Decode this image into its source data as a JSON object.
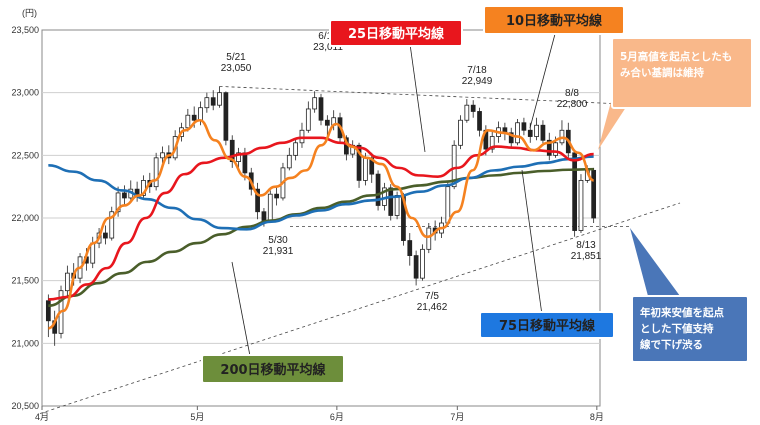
{
  "chart_data": {
    "type": "candlestick",
    "unit_label": "(円)",
    "ylim": [
      20500,
      23500
    ],
    "y_ticks": [
      "23,500",
      "23,000",
      "22,500",
      "22,000",
      "21,500",
      "21,000",
      "20,500"
    ],
    "x_months": [
      "4月",
      "5月",
      "6月",
      "7月",
      "8月"
    ],
    "grid": true,
    "annotations": [
      {
        "date": "5/21",
        "value": "23,050"
      },
      {
        "date": "6/12",
        "value": "23,011"
      },
      {
        "date": "7/18",
        "value": "22,949"
      },
      {
        "date": "8/8",
        "value": "22,800"
      },
      {
        "date": "5/30",
        "value": "21,931"
      },
      {
        "date": "7/5",
        "value": "21,462"
      },
      {
        "date": "8/13",
        "value": "21,851"
      }
    ],
    "series_labels": {
      "ma25": "25日移動平均線",
      "ma10": "10日移動平均線",
      "ma75": "75日移動平均線",
      "ma200": "200日移動平均線"
    },
    "notes": {
      "resistance": "5月高値を起点としたもみ合い基調は維持",
      "support": "年初来安値を起点とした下値支持線で下げ渋る"
    },
    "colors": {
      "ma25": "#e8161d",
      "ma10": "#f58220",
      "ma75": "#1e6fb5",
      "ma200": "#4a5e2a",
      "ma25_box": "#e8161d",
      "ma10_box": "#f58220",
      "ma75_box": "#1e78e0",
      "ma200_box": "#6d8e3b",
      "note1_box": "#f9b88a",
      "note2_box": "#4a76b8"
    },
    "candles": [
      [
        21340,
        21180,
        21390,
        21050
      ],
      [
        21180,
        21080,
        21260,
        20980
      ],
      [
        21080,
        21420,
        21460,
        21040
      ],
      [
        21420,
        21560,
        21620,
        21360
      ],
      [
        21560,
        21520,
        21640,
        21460
      ],
      [
        21520,
        21690,
        21720,
        21480
      ],
      [
        21690,
        21640,
        21760,
        21580
      ],
      [
        21640,
        21800,
        21850,
        21600
      ],
      [
        21800,
        21880,
        21920,
        21760
      ],
      [
        21880,
        21840,
        21940,
        21790
      ],
      [
        21840,
        22050,
        22090,
        21820
      ],
      [
        22050,
        22200,
        22250,
        22010
      ],
      [
        22200,
        22160,
        22260,
        22100
      ],
      [
        22160,
        22230,
        22300,
        22120
      ],
      [
        22230,
        22180,
        22290,
        22130
      ],
      [
        22180,
        22300,
        22340,
        22150
      ],
      [
        22300,
        22250,
        22360,
        22200
      ],
      [
        22250,
        22480,
        22520,
        22220
      ],
      [
        22480,
        22520,
        22570,
        22440
      ],
      [
        22520,
        22480,
        22580,
        22430
      ],
      [
        22480,
        22650,
        22700,
        22460
      ],
      [
        22650,
        22720,
        22760,
        22610
      ],
      [
        22720,
        22820,
        22870,
        22690
      ],
      [
        22820,
        22780,
        22890,
        22720
      ],
      [
        22780,
        22880,
        22930,
        22740
      ],
      [
        22880,
        22960,
        23000,
        22840
      ],
      [
        22960,
        22900,
        23020,
        22860
      ],
      [
        22900,
        23000,
        23050,
        22880
      ],
      [
        23000,
        22620,
        23010,
        22580
      ],
      [
        22620,
        22450,
        22660,
        22400
      ],
      [
        22450,
        22520,
        22560,
        22380
      ],
      [
        22520,
        22360,
        22560,
        22300
      ],
      [
        22360,
        22230,
        22400,
        22180
      ],
      [
        22230,
        22050,
        22280,
        21990
      ],
      [
        22050,
        21980,
        22080,
        21931
      ],
      [
        21980,
        22190,
        22220,
        21960
      ],
      [
        22190,
        22160,
        22250,
        22100
      ],
      [
        22160,
        22400,
        22440,
        22140
      ],
      [
        22400,
        22500,
        22560,
        22380
      ],
      [
        22500,
        22600,
        22640,
        22460
      ],
      [
        22600,
        22700,
        22760,
        22560
      ],
      [
        22700,
        22870,
        22930,
        22680
      ],
      [
        22870,
        22960,
        23011,
        22840
      ],
      [
        22960,
        22780,
        22990,
        22740
      ],
      [
        22780,
        22740,
        22820,
        22640
      ],
      [
        22740,
        22800,
        22860,
        22700
      ],
      [
        22800,
        22640,
        22840,
        22600
      ],
      [
        22640,
        22510,
        22660,
        22460
      ],
      [
        22510,
        22580,
        22620,
        22480
      ],
      [
        22580,
        22300,
        22600,
        22240
      ],
      [
        22300,
        22480,
        22520,
        22260
      ],
      [
        22480,
        22350,
        22520,
        22280
      ],
      [
        22350,
        22100,
        22380,
        22060
      ],
      [
        22100,
        22240,
        22280,
        22060
      ],
      [
        22240,
        22020,
        22270,
        21980
      ],
      [
        22020,
        22180,
        22210,
        21990
      ],
      [
        22180,
        21820,
        22200,
        21780
      ],
      [
        21820,
        21700,
        21880,
        21620
      ],
      [
        21700,
        21520,
        21740,
        21462
      ],
      [
        21520,
        21750,
        21790,
        21500
      ],
      [
        21750,
        21920,
        21960,
        21720
      ],
      [
        21920,
        21880,
        21980,
        21820
      ],
      [
        21880,
        21960,
        22010,
        21840
      ],
      [
        21960,
        22250,
        22290,
        21940
      ],
      [
        22250,
        22580,
        22620,
        22230
      ],
      [
        22580,
        22780,
        22820,
        22550
      ],
      [
        22780,
        22900,
        22949,
        22760
      ],
      [
        22900,
        22850,
        22940,
        22800
      ],
      [
        22850,
        22700,
        22880,
        22650
      ],
      [
        22700,
        22550,
        22740,
        22500
      ],
      [
        22550,
        22650,
        22700,
        22520
      ],
      [
        22650,
        22720,
        22770,
        22600
      ],
      [
        22720,
        22680,
        22760,
        22620
      ],
      [
        22680,
        22600,
        22720,
        22560
      ],
      [
        22600,
        22760,
        22790,
        22580
      ],
      [
        22760,
        22700,
        22800,
        22660
      ],
      [
        22700,
        22650,
        22760,
        22600
      ],
      [
        22650,
        22740,
        22800,
        22620
      ],
      [
        22740,
        22620,
        22780,
        22580
      ],
      [
        22620,
        22500,
        22680,
        22460
      ],
      [
        22500,
        22600,
        22650,
        22480
      ],
      [
        22600,
        22700,
        22780,
        22580
      ],
      [
        22700,
        22520,
        22760,
        22480
      ],
      [
        22520,
        21900,
        22540,
        21851
      ],
      [
        21900,
        22300,
        22350,
        21880
      ],
      [
        22300,
        22380,
        22420,
        22280
      ],
      [
        22380,
        22000,
        22400,
        21960
      ]
    ],
    "ma200": [
      21300,
      21380,
      21480,
      21560,
      21650,
      21730,
      21800,
      21870,
      21930,
      21980,
      22030,
      22080,
      22130,
      22180,
      22230,
      22260,
      22290,
      22320,
      22340,
      22360,
      22375,
      22385,
      22390
    ],
    "ma75": [
      22420,
      22370,
      22300,
      22220,
      22150,
      22080,
      21990,
      21920,
      21910,
      21970,
      22020,
      22060,
      22110,
      22140,
      22170,
      22210,
      22260,
      22320,
      22380,
      22410,
      22440,
      22470,
      22490
    ],
    "ma25": [
      21350,
      21370,
      21470,
      21600,
      21800,
      22000,
      22200,
      22350,
      22440,
      22480,
      22510,
      22560,
      22600,
      22640,
      22640,
      22600,
      22560,
      22480,
      22400,
      22340,
      22330,
      22400,
      22500,
      22570,
      22560,
      22540,
      22530,
      22460,
      22510
    ],
    "ma10": [
      21120,
      21260,
      21600,
      21800,
      22000,
      22100,
      22180,
      22300,
      22500,
      22700,
      22780,
      22620,
      22470,
      22330,
      22180,
      22250,
      22320,
      22380,
      22580,
      22750,
      22570,
      22480,
      22430,
      22250,
      22000,
      21850,
      21920,
      22050,
      22380,
      22700,
      22680,
      22650,
      22540,
      22600,
      22640,
      22520,
      22300
    ]
  }
}
